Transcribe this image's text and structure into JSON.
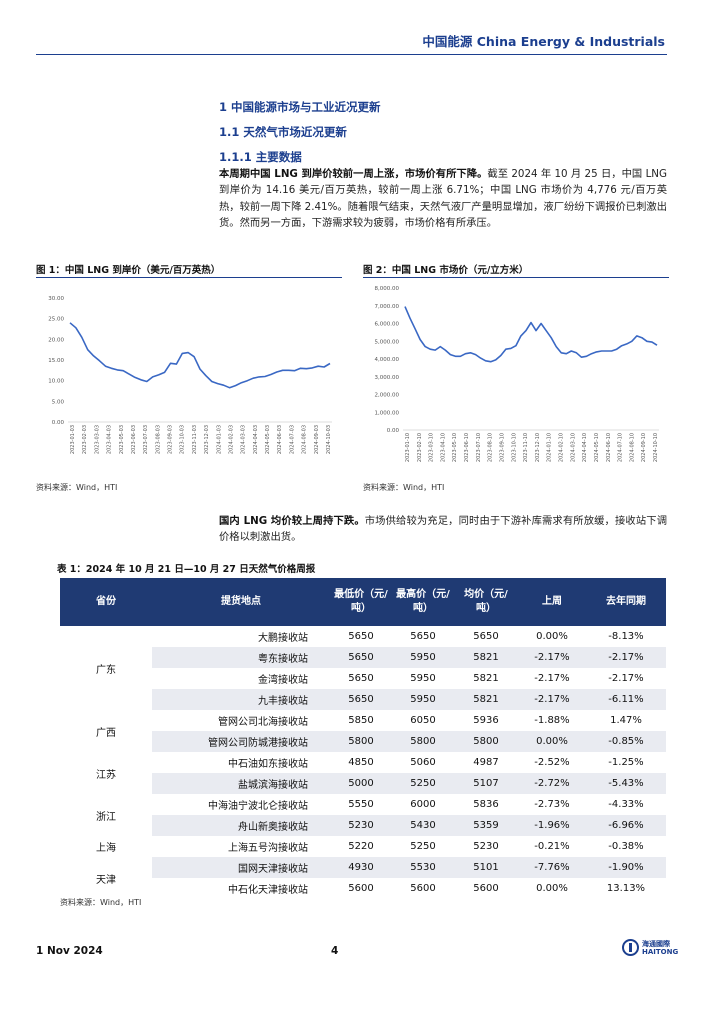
{
  "header": {
    "title": "中国能源 China Energy & Industrials"
  },
  "headings": {
    "h1": "1 中国能源市场与工业近况更新",
    "h2": "1.1 天然气市场近况更新",
    "h3": "1.1.1 主要数据"
  },
  "para1": {
    "bold": "本周期中国 LNG 到岸价较前一周上涨，市场价有所下降。",
    "text": "截至 2024 年 10 月 25 日，中国 LNG 到岸价为 14.16 美元/百万英热，较前一周上涨 6.71%；中国 LNG 市场价为 4,776 元/百万英热，较前一周下降 2.41%。随着限气结束，天然气液厂产量明显增加，液厂纷纷下调报价已刺激出货。然而另一方面，下游需求较为疲弱，市场价格有所承压。"
  },
  "figure1": {
    "caption": "图 1：中国 LNG 到岸价（美元/百万英热）",
    "source": "资料来源：Wind，HTI"
  },
  "figure2": {
    "caption": "图 2：中国 LNG 市场价（元/立方米）",
    "source": "资料来源：Wind，HTI"
  },
  "chart_data": [
    {
      "type": "line",
      "ylim": [
        0,
        30
      ],
      "yticks": [
        "0.00",
        "5.00",
        "10.00",
        "15.00",
        "20.00",
        "25.00",
        "30.00"
      ],
      "xticks": [
        "2023-01-03",
        "2023-02-03",
        "2023-03-03",
        "2023-04-03",
        "2023-05-03",
        "2023-06-03",
        "2023-07-03",
        "2023-08-03",
        "2023-09-03",
        "2023-10-03",
        "2023-11-03",
        "2023-12-03",
        "2024-01-03",
        "2024-02-03",
        "2024-03-03",
        "2024-04-03",
        "2024-05-03",
        "2024-06-03",
        "2024-07-03",
        "2024-08-03",
        "2024-09-03",
        "2024-10-03"
      ],
      "values": [
        24.0,
        22.8,
        20.5,
        17.5,
        16.0,
        14.8,
        13.5,
        13.0,
        12.6,
        12.4,
        11.6,
        10.8,
        10.2,
        9.8,
        10.9,
        11.4,
        12.0,
        14.2,
        14.0,
        16.6,
        16.8,
        15.8,
        12.8,
        11.2,
        9.8,
        9.3,
        8.9,
        8.3,
        8.8,
        9.5,
        10.0,
        10.6,
        10.9,
        11.0,
        11.5,
        12.1,
        12.5,
        12.5,
        12.4,
        13.0,
        12.9,
        13.1,
        13.5,
        13.3,
        14.16
      ]
    },
    {
      "type": "line",
      "ylim": [
        0,
        8000
      ],
      "yticks": [
        "0.00",
        "1,000.00",
        "2,000.00",
        "3,000.00",
        "4,000.00",
        "5,000.00",
        "6,000.00",
        "7,000.00",
        "8,000.00"
      ],
      "xticks": [
        "2023-01-10",
        "2023-02-10",
        "2023-03-10",
        "2023-04-10",
        "2023-05-10",
        "2023-06-10",
        "2023-07-10",
        "2023-08-10",
        "2023-09-10",
        "2023-10-10",
        "2023-11-10",
        "2023-12-10",
        "2024-01-10",
        "2024-02-10",
        "2024-03-10",
        "2024-04-10",
        "2024-05-10",
        "2024-06-10",
        "2024-07-10",
        "2024-08-10",
        "2024-09-10",
        "2024-10-10"
      ],
      "values": [
        6950,
        6300,
        5700,
        5100,
        4700,
        4550,
        4500,
        4700,
        4500,
        4250,
        4150,
        4150,
        4300,
        4350,
        4250,
        4050,
        3900,
        3850,
        3950,
        4200,
        4550,
        4600,
        4750,
        5300,
        5600,
        6050,
        5600,
        6000,
        5600,
        5200,
        4700,
        4350,
        4300,
        4450,
        4350,
        4100,
        4150,
        4300,
        4400,
        4450,
        4450,
        4450,
        4550,
        4750,
        4850,
        5000,
        5300,
        5200,
        5000,
        4950,
        4776
      ]
    }
  ],
  "para2": {
    "bold": "国内 LNG 均价较上周持下跌。",
    "text": "市场供给较为充足，同时由于下游补库需求有所放缓，接收站下调价格以刺激出货。"
  },
  "table": {
    "caption": "表 1：2024 年 10 月 21 日—10 月 27 日天然气价格周报",
    "headers": {
      "province": "省份",
      "location": "提货地点",
      "low": "最低价（元/吨）",
      "high": "最高价（元/吨）",
      "avg": "均价（元/吨）",
      "week": "上周",
      "yoy": "去年同期"
    },
    "provinces": [
      "广东",
      "广西",
      "江苏",
      "浙江",
      "上海",
      "天津"
    ],
    "rows": [
      [
        "大鹏接收站",
        "5650",
        "5650",
        "5650",
        "0.00%",
        "-8.13%"
      ],
      [
        "粤东接收站",
        "5650",
        "5950",
        "5821",
        "-2.17%",
        "-2.17%"
      ],
      [
        "金湾接收站",
        "5650",
        "5950",
        "5821",
        "-2.17%",
        "-2.17%"
      ],
      [
        "九丰接收站",
        "5650",
        "5950",
        "5821",
        "-2.17%",
        "-6.11%"
      ],
      [
        "管网公司北海接收站",
        "5850",
        "6050",
        "5936",
        "-1.88%",
        "1.47%"
      ],
      [
        "管网公司防城港接收站",
        "5800",
        "5800",
        "5800",
        "0.00%",
        "-0.85%"
      ],
      [
        "中石油如东接收站",
        "4850",
        "5060",
        "4987",
        "-2.52%",
        "-1.25%"
      ],
      [
        "盐城滨海接收站",
        "5000",
        "5250",
        "5107",
        "-2.72%",
        "-5.43%"
      ],
      [
        "中海油宁波北仑接收站",
        "5550",
        "6000",
        "5836",
        "-2.73%",
        "-4.33%"
      ],
      [
        "舟山新奥接收站",
        "5230",
        "5430",
        "5359",
        "-1.96%",
        "-6.96%"
      ],
      [
        "上海五号沟接收站",
        "5220",
        "5250",
        "5230",
        "-0.21%",
        "-0.38%"
      ],
      [
        "国网天津接收站",
        "4930",
        "5530",
        "5101",
        "-7.76%",
        "-1.90%"
      ],
      [
        "中石化天津接收站",
        "5600",
        "5600",
        "5600",
        "0.00%",
        "13.13%"
      ]
    ],
    "source": "资料来源：Wind，HTI"
  },
  "footer": {
    "date": "1 Nov 2024",
    "page": "4",
    "logo_cn": "海通國際",
    "logo_en": "HAITONG"
  },
  "colors": {
    "accent": "#1c3f8f",
    "table_header": "#1f3a73",
    "series": "#3a68c4",
    "positive": "#d10000",
    "negative": "#1b7a1b"
  }
}
